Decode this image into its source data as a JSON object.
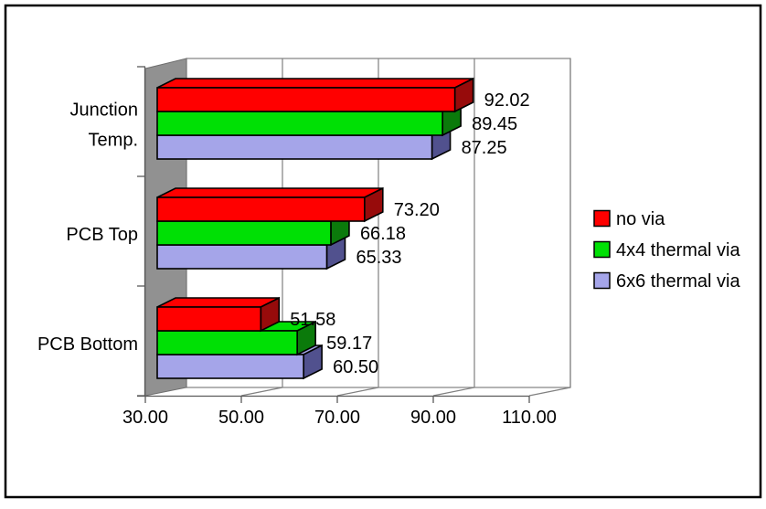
{
  "chart_data": {
    "type": "bar",
    "orientation": "horizontal",
    "style": "3d-clustered",
    "title": "",
    "categories": [
      "Junction Temp.",
      "PCB Top",
      "PCB Bottom"
    ],
    "category_display_lines": [
      [
        "Junction",
        "Temp."
      ],
      [
        "PCB Top"
      ],
      [
        "PCB Bottom"
      ]
    ],
    "series": [
      {
        "name": "no via",
        "color": "#ff0000",
        "side_color": "#970b0b",
        "values": [
          92.02,
          73.2,
          51.58
        ],
        "display_values": [
          "92.02",
          "73.20",
          "51.58"
        ]
      },
      {
        "name": "4x4 thermal via",
        "color": "#00e005",
        "side_color": "#0b7a0b",
        "values": [
          89.45,
          66.18,
          59.17
        ],
        "display_values": [
          "89.45",
          "66.18",
          "59.17"
        ]
      },
      {
        "name": "6x6 thermal via",
        "color": "#a5a5e9",
        "side_color": "#51518e",
        "values": [
          87.25,
          65.33,
          60.5
        ],
        "display_values": [
          "87.25",
          "65.33",
          "60.50"
        ]
      }
    ],
    "x_axis": {
      "min": 30,
      "max": 110,
      "tick_step": 20,
      "tick_labels": [
        "30.00",
        "50.00",
        "70.00",
        "90.00",
        "110.00"
      ]
    },
    "legend": {
      "position": "right",
      "items": [
        "no via",
        "4x4 thermal via",
        "6x6 thermal via"
      ]
    },
    "grid": true,
    "data_labels": true,
    "wall_color": "#919191",
    "wall_edge_color": "#6e6e6e",
    "gridline_color": "#808080",
    "axis_color": "#5a5a5a",
    "bar_outline_color": "#000000",
    "text_color": "#000000",
    "frame_color": "#000000",
    "background_color": "#ffffff"
  }
}
